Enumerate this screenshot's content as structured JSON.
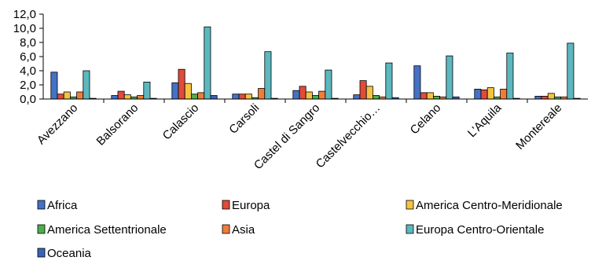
{
  "chart_data": {
    "type": "bar",
    "categories": [
      "Avezzano",
      "Balsorano",
      "Calascio",
      "Carsoli",
      "Castel di Sangro",
      "Castelvecchio…",
      "Celano",
      "L'Aquila",
      "Montereale"
    ],
    "y_ticks": [
      "0,0",
      "2,0",
      "4,0",
      "6,0",
      "8,0",
      "10,0",
      "12,0"
    ],
    "ylim": [
      0,
      12
    ],
    "grid": false,
    "legend_position": "bottom",
    "series": [
      {
        "name": "Africa",
        "color": "#4472C4",
        "values": [
          3.8,
          0.5,
          2.3,
          0.7,
          1.2,
          0.6,
          4.7,
          1.4,
          0.4
        ]
      },
      {
        "name": "Europa",
        "color": "#E04B3A",
        "values": [
          0.7,
          1.1,
          4.2,
          0.7,
          1.8,
          2.6,
          0.9,
          1.3,
          0.4
        ]
      },
      {
        "name": "America Centro-Meridionale",
        "color": "#F5C342",
        "values": [
          1.0,
          0.6,
          2.2,
          0.7,
          1.0,
          1.8,
          0.9,
          1.6,
          0.8
        ]
      },
      {
        "name": "America Settentrionale",
        "color": "#4DAF4A",
        "values": [
          0.3,
          0.3,
          0.7,
          0.2,
          0.5,
          0.5,
          0.4,
          0.3,
          0.3
        ]
      },
      {
        "name": "Asia",
        "color": "#EF7D3A",
        "values": [
          1.0,
          0.5,
          0.9,
          1.5,
          1.1,
          0.3,
          0.3,
          1.4,
          0.3
        ]
      },
      {
        "name": "Europa Centro-Orientale",
        "color": "#5CB8BE",
        "values": [
          4.0,
          2.4,
          10.2,
          6.7,
          4.1,
          5.1,
          6.1,
          6.5,
          7.9
        ]
      },
      {
        "name": "Oceania",
        "color": "#3A63B8",
        "values": [
          0.1,
          0.1,
          0.5,
          0.1,
          0.1,
          0.2,
          0.3,
          0.1,
          0.1
        ]
      }
    ]
  }
}
